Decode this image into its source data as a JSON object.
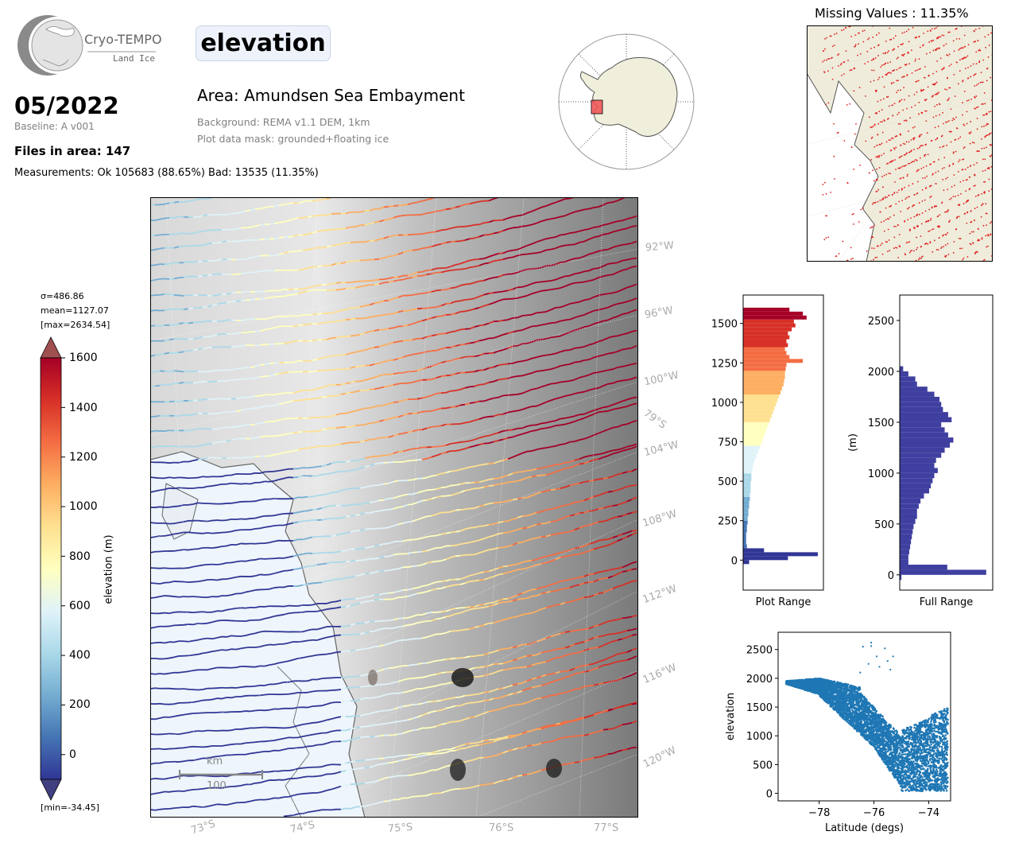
{
  "header": {
    "logo_title": "Cryo-TEMPO",
    "logo_subtitle": "Land Ice",
    "date": "05/2022",
    "baseline": "Baseline: A v001",
    "files": "Files in area: 147",
    "measurements": "Measurements: Ok 105683 (88.65%) Bad: 13535 (11.35%)",
    "parameter": "elevation",
    "area": "Area: Amundsen Sea Embayment",
    "background": "Background: REMA v1.1 DEM, 1km",
    "mask": "Plot data mask: grounded+floating ice"
  },
  "colorbar": {
    "sigma": "σ=486.86",
    "mean": "mean=1127.07",
    "max": "[max=2634.54]",
    "min": "[min=-34.45]",
    "label": "elevation (m)",
    "ticks": [
      "1600",
      "1400",
      "1200",
      "1000",
      "800",
      "600",
      "400",
      "200",
      "0"
    ],
    "colors": [
      "#313695",
      "#4575b4",
      "#74add1",
      "#abd9e9",
      "#e0f3f8",
      "#ffffbf",
      "#fee090",
      "#fdae61",
      "#f46d43",
      "#d73027",
      "#a50026"
    ]
  },
  "map": {
    "lon_labels": [
      "92°W",
      "96°W",
      "100°W",
      "104°W",
      "108°W",
      "112°W",
      "116°W",
      "120°W"
    ],
    "lat_label_right": "79°S",
    "lat_labels_bottom": [
      "73°S",
      "74°S",
      "75°S",
      "76°S",
      "77°S"
    ],
    "scale_unit": "km",
    "scale_value": "100"
  },
  "missing": {
    "title": "Missing Values : 11.35%"
  },
  "chart_data": [
    {
      "type": "bar",
      "orientation": "horizontal",
      "xlabel": "Plot Range",
      "ylabel": "",
      "ylim": [
        -190,
        1680
      ],
      "yticks": [
        "0",
        "250",
        "500",
        "750",
        "1000",
        "1250",
        "1500"
      ],
      "bin_width": 25,
      "bins": [
        -25,
        0,
        25,
        50,
        75,
        100,
        125,
        150,
        175,
        200,
        225,
        250,
        275,
        300,
        325,
        350,
        375,
        400,
        425,
        450,
        475,
        500,
        525,
        550,
        575,
        600,
        625,
        650,
        675,
        700,
        725,
        750,
        775,
        800,
        825,
        850,
        875,
        900,
        925,
        950,
        975,
        1000,
        1025,
        1050,
        1075,
        1100,
        1125,
        1150,
        1175,
        1200,
        1225,
        1250,
        1275,
        1300,
        1325,
        1350,
        1375,
        1400,
        1425,
        1450,
        1475,
        1500,
        1525,
        1550,
        1575
      ],
      "values": [
        8,
        60,
        100,
        28,
        5,
        4,
        4,
        4,
        5,
        5,
        6,
        6,
        7,
        7,
        8,
        8,
        9,
        9,
        10,
        10,
        10,
        11,
        11,
        12,
        13,
        14,
        16,
        18,
        20,
        22,
        24,
        26,
        28,
        30,
        32,
        34,
        36,
        38,
        40,
        42,
        44,
        46,
        48,
        50,
        52,
        54,
        55,
        56,
        56,
        57,
        58,
        80,
        62,
        58,
        56,
        60,
        58,
        62,
        60,
        65,
        70,
        68,
        85,
        80,
        62
      ]
    },
    {
      "type": "bar",
      "orientation": "horizontal",
      "xlabel": "Full Range",
      "ylabel": "(m)",
      "ylim": [
        -150,
        2750
      ],
      "yticks": [
        "0",
        "500",
        "1000",
        "1500",
        "2000",
        "2500"
      ],
      "bin_width": 50,
      "bins": [
        -50,
        0,
        50,
        100,
        150,
        200,
        250,
        300,
        350,
        400,
        450,
        500,
        550,
        600,
        650,
        700,
        750,
        800,
        850,
        900,
        950,
        1000,
        1050,
        1100,
        1150,
        1200,
        1250,
        1300,
        1350,
        1400,
        1450,
        1500,
        1550,
        1600,
        1650,
        1700,
        1750,
        1800,
        1850,
        1900,
        1950,
        2000
      ],
      "values": [
        2,
        100,
        55,
        10,
        10,
        11,
        12,
        13,
        14,
        15,
        16,
        18,
        20,
        20,
        22,
        24,
        28,
        34,
        36,
        38,
        40,
        44,
        40,
        42,
        48,
        52,
        58,
        62,
        56,
        52,
        48,
        60,
        56,
        50,
        48,
        46,
        40,
        32,
        20,
        18,
        10,
        4
      ]
    },
    {
      "type": "scatter",
      "xlabel": "Latitude (degs)",
      "ylabel": "elevation",
      "xlim": [
        -79.5,
        -73.2
      ],
      "ylim": [
        -130,
        2800
      ],
      "xticks": [
        "−78",
        "−76",
        "−74"
      ],
      "yticks": [
        "0",
        "500",
        "1000",
        "1500",
        "2000",
        "2500"
      ],
      "color": "#1f77b4",
      "outliers": [
        [
          -76.1,
          2620
        ],
        [
          -76.1,
          2560
        ],
        [
          -75.6,
          2520
        ],
        [
          -76.4,
          2550
        ],
        [
          -75.9,
          2380
        ],
        [
          -75.5,
          2300
        ],
        [
          -76.2,
          2250
        ],
        [
          -75.8,
          2200
        ],
        [
          -75.4,
          2150
        ],
        [
          -76.5,
          2100
        ],
        [
          -75.3,
          2380
        ]
      ]
    }
  ]
}
